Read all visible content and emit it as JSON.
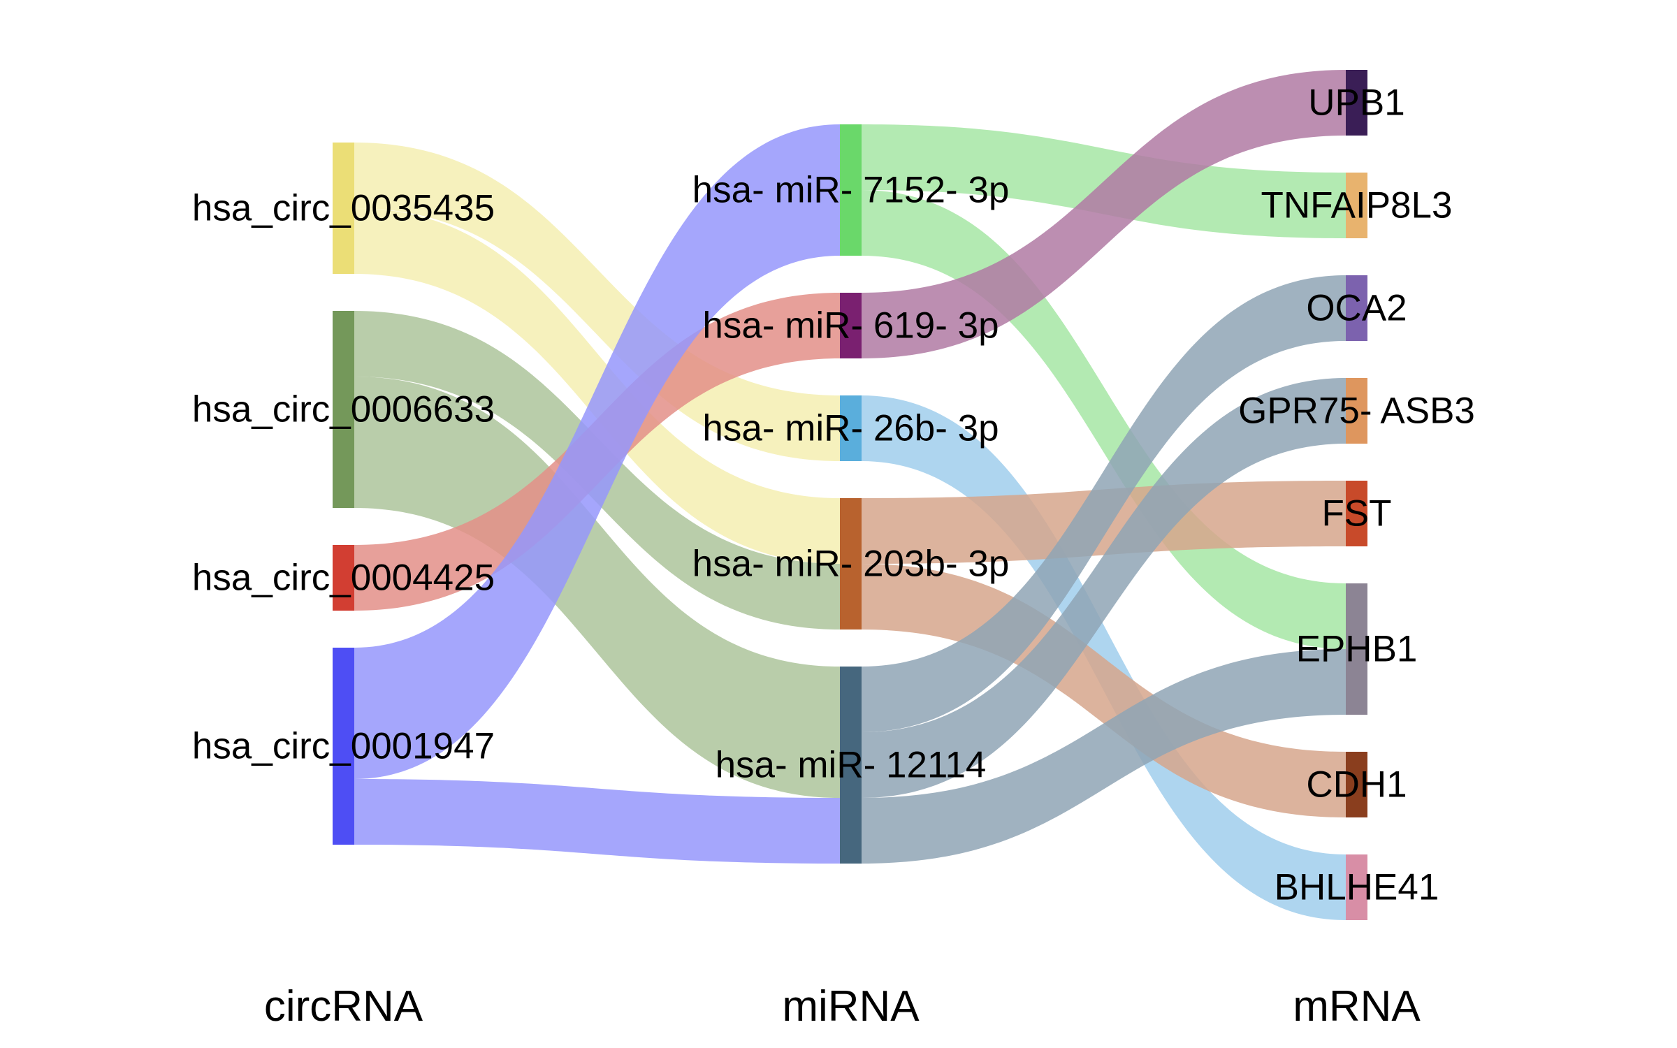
{
  "chart_data": {
    "type": "sankey",
    "columns": [
      {
        "id": "circ",
        "label": "circRNA"
      },
      {
        "id": "mi",
        "label": "miRNA"
      },
      {
        "id": "m",
        "label": "mRNA"
      }
    ],
    "nodes": [
      {
        "id": "c0035435",
        "label": "hsa_circ_0035435",
        "column": "circ",
        "color": "#EBDE76",
        "flow_color": "#F4EEB2"
      },
      {
        "id": "c0006633",
        "label": "hsa_circ_0006633",
        "column": "circ",
        "color": "#74985A",
        "flow_color": "#ADC49B"
      },
      {
        "id": "c0004425",
        "label": "hsa_circ_0004425",
        "column": "circ",
        "color": "#D23E32",
        "flow_color": "#E38F88"
      },
      {
        "id": "c0001947",
        "label": "hsa_circ_0001947",
        "column": "circ",
        "color": "#4E4EF4",
        "flow_color": "#9596FB"
      },
      {
        "id": "mi7152",
        "label": "hsa- miR- 7152- 3p",
        "column": "mi",
        "color": "#6AD86A",
        "flow_color": "#A6E6A4"
      },
      {
        "id": "mi619",
        "label": "hsa- miR- 619- 3p",
        "column": "mi",
        "color": "#7A2070",
        "flow_color": "#B07AA3"
      },
      {
        "id": "mi26b",
        "label": "hsa- miR- 26b- 3p",
        "column": "mi",
        "color": "#5AAEDC",
        "flow_color": "#A0CEEC"
      },
      {
        "id": "mi203b",
        "label": "hsa- miR- 203b- 3p",
        "column": "mi",
        "color": "#B8622E",
        "flow_color": "#D6A68C"
      },
      {
        "id": "mi12114",
        "label": "hsa- miR- 12114",
        "column": "mi",
        "color": "#46677E",
        "flow_color": "#8FA4B5"
      },
      {
        "id": "UPB1",
        "label": "UPB1",
        "column": "m",
        "color": "#3A1E56"
      },
      {
        "id": "TNFAIP8L3",
        "label": "TNFAIP8L3",
        "column": "m",
        "color": "#E8B36E"
      },
      {
        "id": "OCA2",
        "label": "OCA2",
        "column": "m",
        "color": "#7C62AE"
      },
      {
        "id": "GPR75ASB3",
        "label": "GPR75- ASB3",
        "column": "m",
        "color": "#DE965E"
      },
      {
        "id": "FST",
        "label": "FST",
        "column": "m",
        "color": "#C84A2A"
      },
      {
        "id": "EPHB1",
        "label": "EPHB1",
        "column": "m",
        "color": "#8C8494"
      },
      {
        "id": "CDH1",
        "label": "CDH1",
        "column": "m",
        "color": "#8A3E1E"
      },
      {
        "id": "BHLHE41",
        "label": "BHLHE41",
        "column": "m",
        "color": "#D88EA6"
      }
    ],
    "links": [
      {
        "source": "c0035435",
        "target": "mi26b",
        "value": 1
      },
      {
        "source": "c0035435",
        "target": "mi203b",
        "value": 1
      },
      {
        "source": "c0006633",
        "target": "mi203b",
        "value": 1
      },
      {
        "source": "c0006633",
        "target": "mi12114",
        "value": 2
      },
      {
        "source": "c0004425",
        "target": "mi619",
        "value": 1
      },
      {
        "source": "c0001947",
        "target": "mi7152",
        "value": 2
      },
      {
        "source": "c0001947",
        "target": "mi12114",
        "value": 1
      },
      {
        "source": "mi7152",
        "target": "TNFAIP8L3",
        "value": 1
      },
      {
        "source": "mi7152",
        "target": "EPHB1",
        "value": 1
      },
      {
        "source": "mi619",
        "target": "UPB1",
        "value": 1
      },
      {
        "source": "mi26b",
        "target": "BHLHE41",
        "value": 1
      },
      {
        "source": "mi203b",
        "target": "FST",
        "value": 1
      },
      {
        "source": "mi203b",
        "target": "CDH1",
        "value": 1
      },
      {
        "source": "mi12114",
        "target": "OCA2",
        "value": 1
      },
      {
        "source": "mi12114",
        "target": "GPR75ASB3",
        "value": 1
      },
      {
        "source": "mi12114",
        "target": "EPHB1",
        "value": 1
      }
    ]
  }
}
